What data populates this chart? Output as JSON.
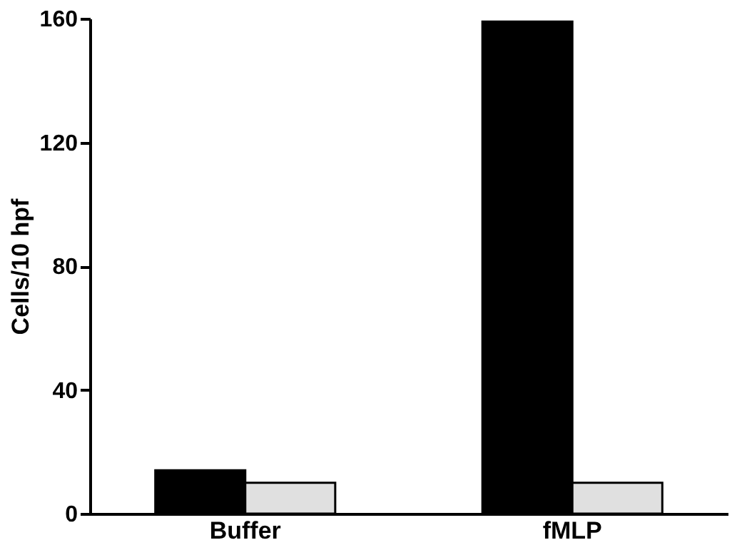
{
  "chart_data": {
    "type": "bar",
    "ylabel": "Cells/10 hpf",
    "categories": [
      "Buffer",
      "fMLP"
    ],
    "series": [
      {
        "color": "#000000",
        "values": [
          14,
          159
        ]
      },
      {
        "color": "#e0e0e0",
        "values": [
          10,
          10
        ]
      }
    ],
    "ylim": [
      0,
      160
    ],
    "yticks": [
      0,
      40,
      80,
      120,
      160
    ],
    "grid": false,
    "legend": false
  }
}
